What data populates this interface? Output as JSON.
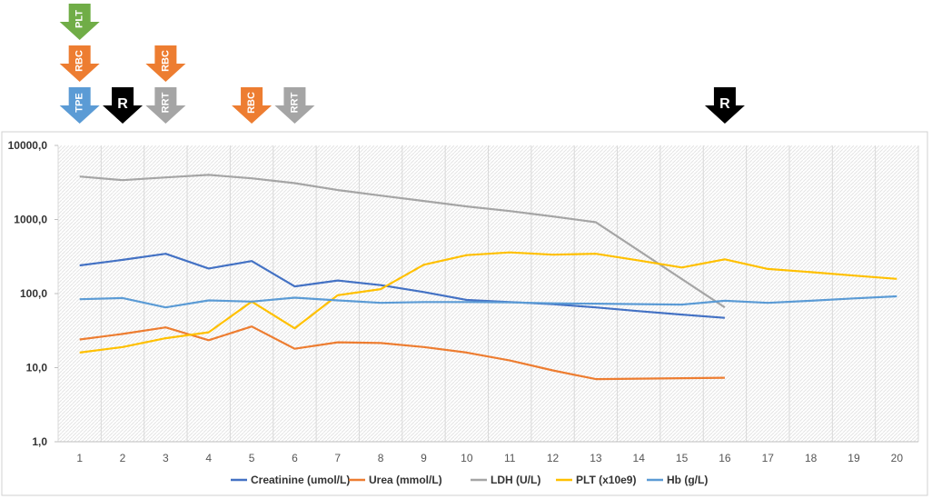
{
  "markers": [
    {
      "label": "PLT",
      "x": 1,
      "row": 0,
      "color": "#70ad47",
      "label_color": "#ffffff",
      "rotate": true
    },
    {
      "label": "RBC",
      "x": 1,
      "row": 1,
      "color": "#ed7d31",
      "label_color": "#ffffff",
      "rotate": true
    },
    {
      "label": "TPE",
      "x": 1,
      "row": 2,
      "color": "#5b9bd5",
      "label_color": "#ffffff",
      "rotate": true
    },
    {
      "label": "R",
      "x": 2,
      "row": 2,
      "color": "#000000",
      "label_color": "#ffffff",
      "rotate": false
    },
    {
      "label": "RBC",
      "x": 3,
      "row": 1,
      "color": "#ed7d31",
      "label_color": "#ffffff",
      "rotate": true
    },
    {
      "label": "RRT",
      "x": 3,
      "row": 2,
      "color": "#a5a5a5",
      "label_color": "#ffffff",
      "rotate": true
    },
    {
      "label": "RBC",
      "x": 5,
      "row": 2,
      "color": "#ed7d31",
      "label_color": "#ffffff",
      "rotate": true
    },
    {
      "label": "RRT",
      "x": 6,
      "row": 2,
      "color": "#a5a5a5",
      "label_color": "#ffffff",
      "rotate": true
    },
    {
      "label": "R",
      "x": 16,
      "row": 2,
      "color": "#000000",
      "label_color": "#ffffff",
      "rotate": false
    }
  ],
  "chart_data": {
    "type": "line",
    "title": "",
    "xlabel": "",
    "ylabel": "",
    "y_scale": "log",
    "ylim": [
      1,
      10000
    ],
    "y_ticks": [
      {
        "value": 1,
        "label": "1,0"
      },
      {
        "value": 10,
        "label": "10,0"
      },
      {
        "value": 100,
        "label": "100,0"
      },
      {
        "value": 1000,
        "label": "1000,0"
      },
      {
        "value": 10000,
        "label": "10000,0"
      }
    ],
    "categories": [
      "1",
      "2",
      "3",
      "4",
      "5",
      "6",
      "7",
      "8",
      "9",
      "10",
      "11",
      "12",
      "13",
      "14",
      "15",
      "16",
      "17",
      "18",
      "19",
      "20"
    ],
    "grid": "vertical",
    "legend_position": "bottom",
    "series": [
      {
        "name": "Creatinine (umol/L)",
        "color": "#4472c4",
        "values": [
          240,
          285,
          345,
          218,
          275,
          125,
          150,
          130,
          105,
          82,
          77,
          72,
          65,
          58,
          52,
          47,
          null,
          null,
          null,
          null
        ]
      },
      {
        "name": "Urea (mmol/L)",
        "color": "#ed7d31",
        "values": [
          24,
          28.5,
          35,
          23.5,
          36,
          18,
          22,
          21.5,
          19,
          16,
          12.5,
          9.2,
          7.0,
          7.1,
          7.2,
          7.3,
          null,
          null,
          null,
          null
        ]
      },
      {
        "name": "LDH (U/L)",
        "color": "#a5a5a5",
        "values": [
          3800,
          3400,
          3700,
          4000,
          3600,
          3100,
          2500,
          2100,
          1780,
          1500,
          1300,
          1100,
          920,
          null,
          null,
          65,
          null,
          null,
          null,
          null
        ]
      },
      {
        "name": "PLT (x10e9)",
        "color": "#ffc000",
        "values": [
          16,
          19,
          25,
          30,
          78,
          34,
          95,
          115,
          245,
          330,
          360,
          335,
          345,
          280,
          225,
          290,
          215,
          195,
          175,
          158
        ]
      },
      {
        "name": "Hb (g/L)",
        "color": "#5b9bd5",
        "values": [
          84,
          87,
          65,
          81,
          78,
          88,
          81,
          75,
          77,
          77,
          76,
          74,
          73,
          72,
          71,
          80,
          75,
          80,
          86,
          92
        ]
      }
    ]
  }
}
